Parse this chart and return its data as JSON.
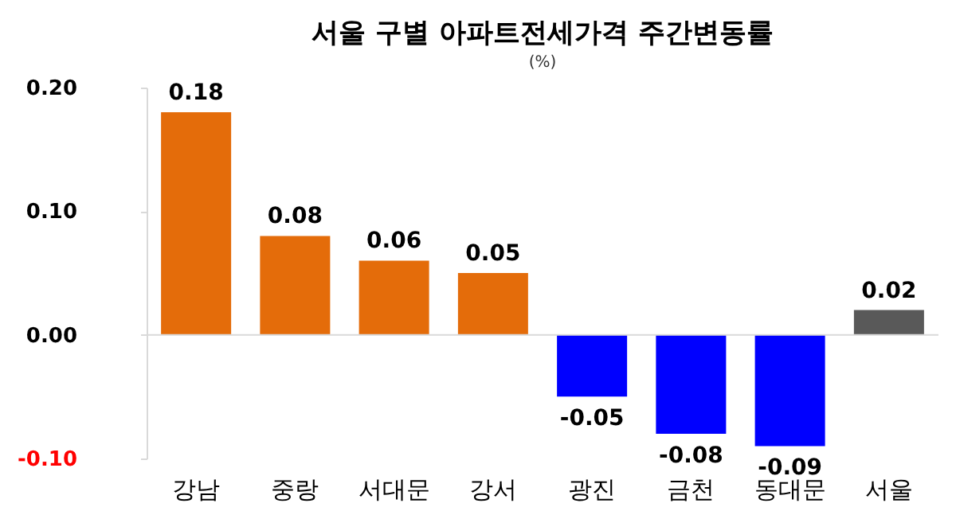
{
  "chart_data": {
    "type": "bar",
    "title": "서울 구별 아파트전세가격 주간변동률",
    "ylabel": "(%)",
    "categories": [
      "강남",
      "중랑",
      "서대문",
      "강서",
      "광진",
      "금천",
      "동대문",
      "서울"
    ],
    "values": [
      0.18,
      0.08,
      0.06,
      0.05,
      -0.05,
      -0.08,
      -0.09,
      0.02
    ],
    "colors": [
      "#e46c0a",
      "#e46c0a",
      "#e46c0a",
      "#e46c0a",
      "#0000ff",
      "#0000ff",
      "#0000ff",
      "#595959"
    ],
    "ylim": [
      -0.1,
      0.2
    ],
    "yticks": [
      {
        "value": -0.1,
        "label": "-0.10"
      },
      {
        "value": 0,
        "label": "0.00"
      },
      {
        "value": 0.1,
        "label": "0.10"
      },
      {
        "value": 0.2,
        "label": "0.20"
      }
    ],
    "ref_lines": [
      {
        "axis": "y",
        "value": 0,
        "color": "#d9d9d9"
      }
    ],
    "data_labels": true
  }
}
